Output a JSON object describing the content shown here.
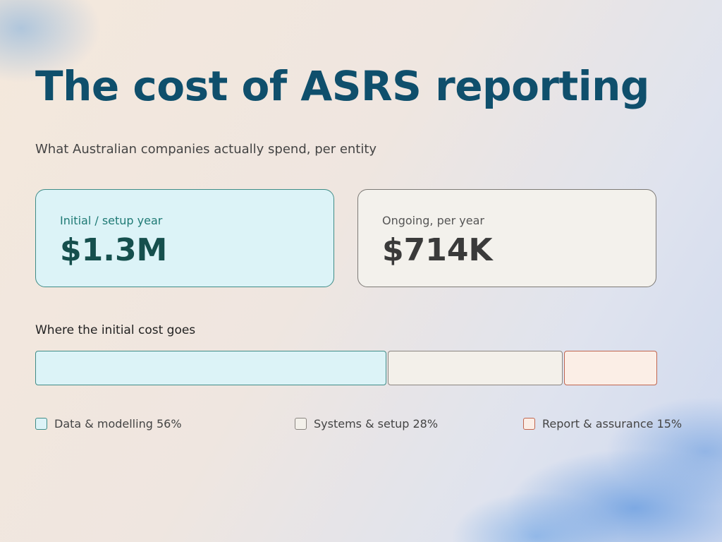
{
  "header": {
    "title": "The cost of ASRS reporting",
    "subtitle": "What Australian companies actually spend, per entity"
  },
  "cards": [
    {
      "label": "Initial / setup year",
      "amount": "$1.3M"
    },
    {
      "label": "Ongoing, per year",
      "amount": "$714K"
    }
  ],
  "breakdown": {
    "title": "Where the initial cost goes",
    "segments": [
      {
        "name": "Data & modelling",
        "value": 56,
        "value_label": "56%",
        "color": "#dcf3f7",
        "border": "#3f8c87"
      },
      {
        "name": "Systems & setup",
        "value": 28,
        "value_label": "28%",
        "color": "#f3f0ea",
        "border": "#8a8580"
      },
      {
        "name": "Report & assurance",
        "value": 15,
        "value_label": "15%",
        "color": "#fbeee6",
        "border": "#c0654e"
      }
    ]
  }
}
